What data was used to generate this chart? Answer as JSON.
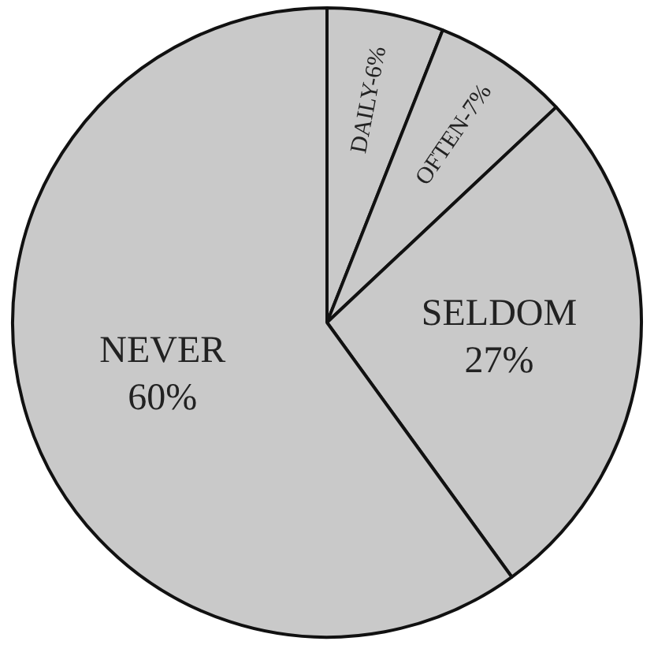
{
  "chart_data": {
    "type": "pie",
    "categories": [
      "DAILY",
      "OFTEN",
      "SELDOM",
      "NEVER"
    ],
    "values": [
      6,
      7,
      27,
      60
    ],
    "value_labels": [
      "6%",
      "7%",
      "27%",
      "60%"
    ],
    "colors": [
      "#c9c9c9",
      "#c9c9c9",
      "#c9c9c9",
      "#c9c9c9"
    ],
    "legend": false
  }
}
